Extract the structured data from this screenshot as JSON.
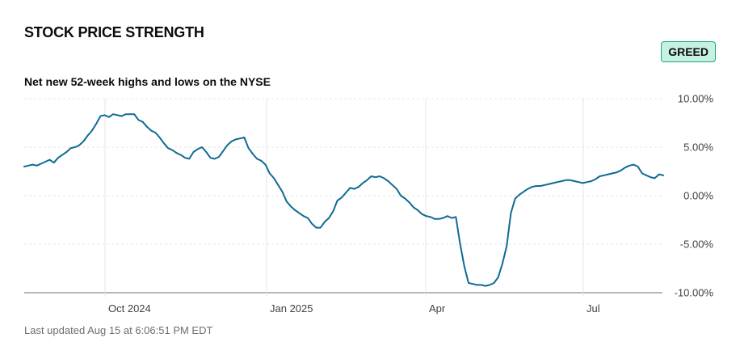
{
  "header": {
    "title": "STOCK PRICE STRENGTH",
    "badge": "GREED",
    "subtitle": "Net new 52-week highs and lows on the NYSE"
  },
  "footer": {
    "last_updated": "Last updated Aug 15 at 6:06:51 PM EDT"
  },
  "colors": {
    "line": "#0f6a94",
    "grid": "#e4e4e4",
    "badge_bg": "#c6f0e2",
    "badge_border": "#1aa985"
  },
  "chart_data": {
    "type": "line",
    "title": "Net new 52-week highs and lows on the NYSE",
    "x_ticks": [
      "Oct 2024",
      "Jan 2025",
      "Apr",
      "Jul"
    ],
    "y_ticks": [
      "10.00%",
      "5.00%",
      "0.00%",
      "-5.00%",
      "-10.00%"
    ],
    "ylim": [
      -10,
      10
    ],
    "grid": true,
    "series": [
      {
        "values": [
          3.0,
          3.1,
          3.2,
          3.1,
          3.3,
          3.5,
          3.7,
          3.4,
          3.9,
          4.2,
          4.5,
          4.9,
          5.0,
          5.2,
          5.6,
          6.2,
          6.7,
          7.4,
          8.2,
          8.3,
          8.1,
          8.4,
          8.3,
          8.2,
          8.4,
          8.4,
          8.4,
          7.8,
          7.6,
          7.1,
          6.7,
          6.5,
          6.0,
          5.4,
          4.9,
          4.7,
          4.4,
          4.2,
          3.9,
          3.8,
          4.5,
          4.8,
          5.0,
          4.5,
          3.9,
          3.8,
          4.0,
          4.6,
          5.2,
          5.6,
          5.8,
          5.9,
          6.0,
          4.9,
          4.3,
          3.8,
          3.6,
          3.2,
          2.3,
          1.8,
          1.1,
          0.4,
          -0.6,
          -1.1,
          -1.5,
          -1.8,
          -2.1,
          -2.3,
          -2.9,
          -3.3,
          -3.3,
          -2.7,
          -2.3,
          -1.6,
          -0.5,
          -0.2,
          0.3,
          0.8,
          0.7,
          0.9,
          1.3,
          1.6,
          2.0,
          1.9,
          2.0,
          1.8,
          1.5,
          1.1,
          0.7,
          0.0,
          -0.3,
          -0.7,
          -1.2,
          -1.5,
          -1.9,
          -2.1,
          -2.2,
          -2.4,
          -2.4,
          -2.3,
          -2.1,
          -2.3,
          -2.2,
          -5.0,
          -7.3,
          -9.0,
          -9.1,
          -9.2,
          -9.2,
          -9.3,
          -9.2,
          -9.0,
          -8.4,
          -7.0,
          -5.2,
          -1.8,
          -0.3,
          0.1,
          0.4,
          0.7,
          0.9,
          1.0,
          1.0,
          1.1,
          1.2,
          1.3,
          1.4,
          1.5,
          1.6,
          1.6,
          1.5,
          1.4,
          1.3,
          1.4,
          1.5,
          1.7,
          2.0,
          2.1,
          2.2,
          2.3,
          2.4,
          2.6,
          2.9,
          3.1,
          3.2,
          3.0,
          2.3,
          2.1,
          1.9,
          1.8,
          2.2,
          2.1
        ]
      }
    ]
  }
}
